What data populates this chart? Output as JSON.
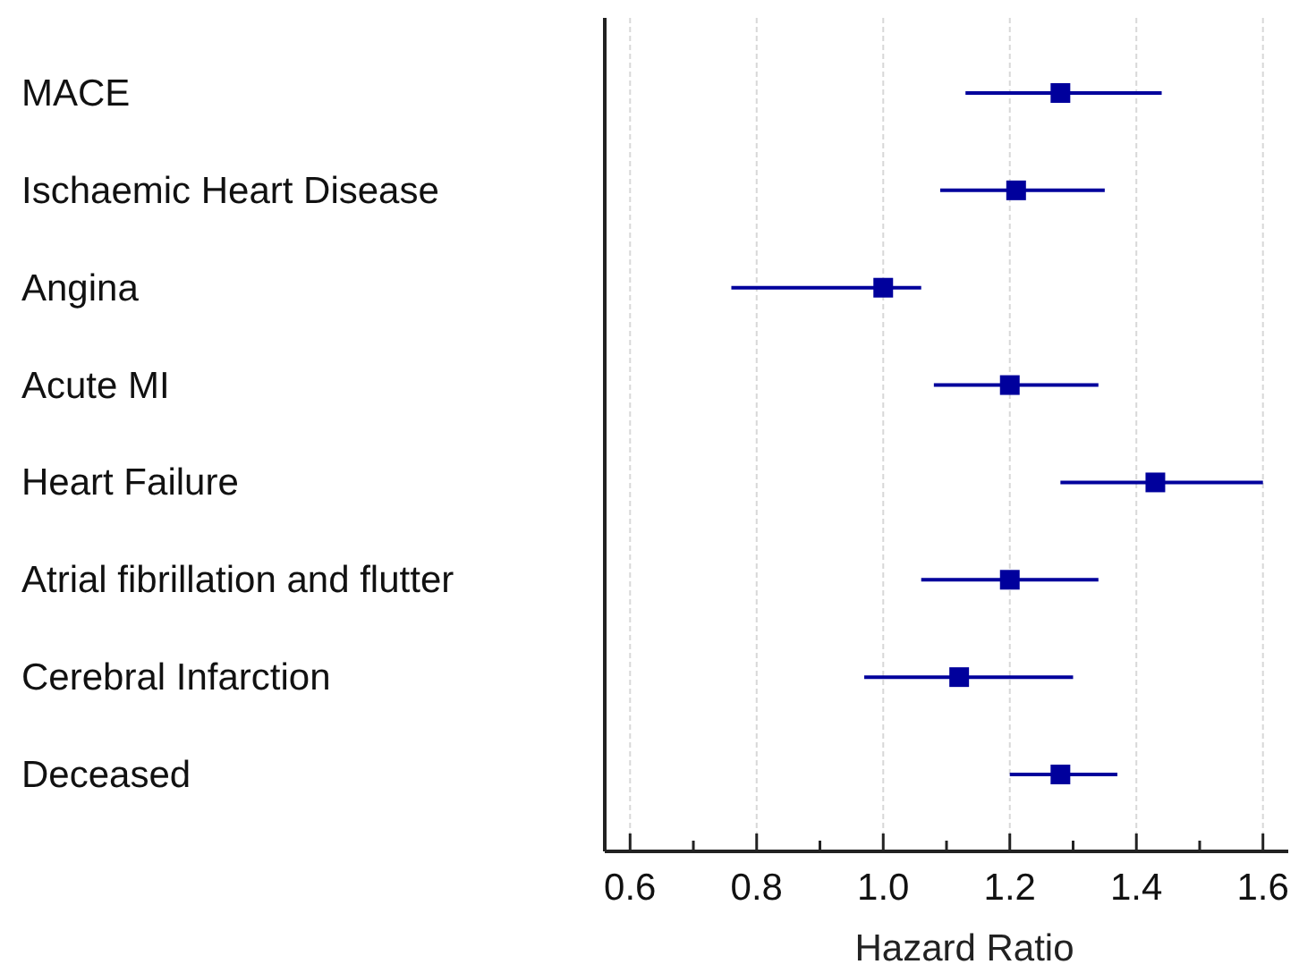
{
  "chart_data": {
    "type": "scatter",
    "orientation": "horizontal",
    "xlabel": "Hazard Ratio",
    "categories": [
      "MACE",
      "Ischaemic Heart Disease",
      "Angina",
      "Acute MI",
      "Heart Failure",
      "Atrial fibrillation and flutter",
      "Cerebral Infarction",
      "Deceased"
    ],
    "series": [
      {
        "color": "#00009c",
        "values": [
          1.28,
          1.21,
          1.0,
          1.2,
          1.43,
          1.2,
          1.12,
          1.28
        ],
        "errors": [
          [
            1.13,
            1.44
          ],
          [
            1.09,
            1.35
          ],
          [
            0.76,
            1.06
          ],
          [
            1.08,
            1.34
          ],
          [
            1.28,
            1.6
          ],
          [
            1.06,
            1.34
          ],
          [
            0.97,
            1.3
          ],
          [
            1.2,
            1.37
          ]
        ]
      }
    ],
    "xlim": [
      0.56,
      1.64
    ],
    "xticks": [
      0.6,
      {
        "value": 0.7,
        "label": null
      },
      0.8,
      {
        "value": 0.9,
        "label": null
      },
      {
        "value": 1.0,
        "label": "1.0"
      },
      {
        "value": 1.1,
        "label": null
      },
      1.2,
      {
        "value": 1.3,
        "label": null
      },
      1.4,
      {
        "value": 1.5,
        "label": null
      },
      1.6
    ],
    "grid": "x",
    "marker": "square"
  }
}
